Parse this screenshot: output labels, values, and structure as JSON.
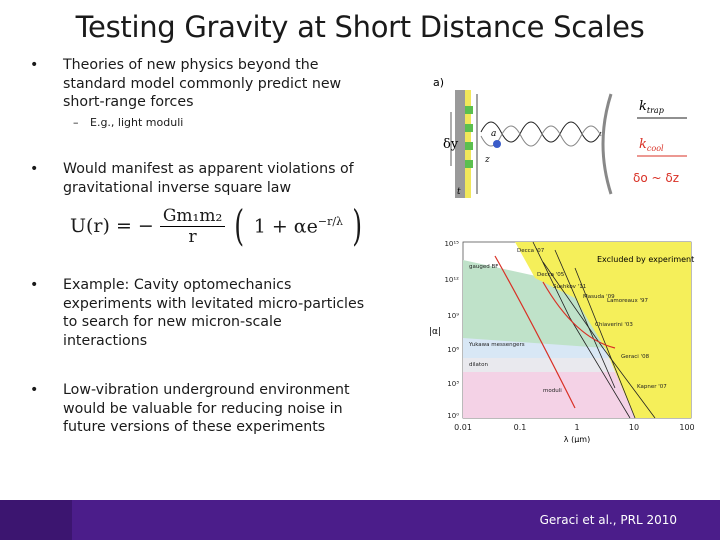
{
  "slide": {
    "title": "Testing Gravity at Short Distance Scales",
    "bullets": [
      {
        "text": "Theories of new physics beyond the standard model commonly predict new short-range forces"
      },
      {
        "text": "Would manifest as apparent violations of gravitational inverse square law"
      },
      {
        "text": "Example: Cavity optomechanics experiments with levitated micro-particles to search for new micron-scale interactions"
      },
      {
        "text": "Low-vibration underground environment would be valuable for reducing noise in future versions of these experiments"
      }
    ],
    "bullet_marker": "•",
    "sub_bullet": {
      "marker": "–",
      "text": "E.g., light moduli"
    },
    "equation": {
      "lhs": "U(r) = −",
      "num": "Gm₁m₂",
      "den": "r",
      "rhs": "1 + αe",
      "exp": "−r/λ"
    },
    "footer_citation": "Geraci et al., PRL 2010"
  },
  "figure_a": {
    "label": "a)",
    "k_trap": "k",
    "k_trap_sub": "trap",
    "k_cool": "k",
    "k_cool_sub": "cool",
    "delta_y": "δy",
    "delta_o": "δo ~ δz",
    "a_label": "a",
    "z_label": "z",
    "t_label": "t"
  },
  "figure_b": {
    "y_label": "|α|",
    "x_label": "λ (μm)",
    "y_ticks": [
      "10¹⁵",
      "10¹²",
      "10⁹",
      "10⁶",
      "10³",
      "10⁰"
    ],
    "x_ticks": [
      "0.01",
      "0.1",
      "1",
      "10",
      "100"
    ],
    "excluded_label": "Excluded by experiment",
    "labels": {
      "decca07": "Decca '07",
      "decca05": "Decca '05",
      "sushkov": "Sushkov '11",
      "masuda": "Masuda '09",
      "lamoreaux": "Lamoreaux '97",
      "chiaverini": "Chiaverini '03",
      "geraci": "Geraci '08",
      "kapner": "Kapner '07",
      "gauged": "gauged BF",
      "yukawa": "Yukawa messengers",
      "dilaton": "dilaton",
      "moduli": "moduli"
    },
    "colors": {
      "excluded": "#f5ef5a",
      "gauged": "#bfe2c9",
      "yukawa": "#d8e7f5",
      "moduli": "#f4d2e6",
      "dilaton": "#e9e9ee",
      "curve_red": "#d93025"
    }
  }
}
